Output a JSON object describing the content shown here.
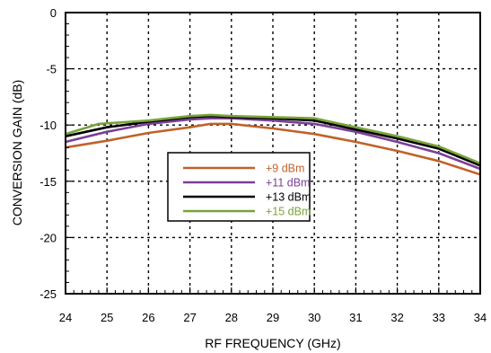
{
  "chart_data": {
    "type": "line",
    "xlabel": "RF FREQUENCY (GHz)",
    "ylabel": "CONVERSION GAIN (dB)",
    "xlim": [
      24,
      34
    ],
    "ylim": [
      -25,
      0
    ],
    "x_ticks": [
      "24",
      "25",
      "26",
      "27",
      "28",
      "29",
      "30",
      "31",
      "32",
      "33",
      "34"
    ],
    "y_ticks": [
      "0",
      "-5",
      "-10",
      "-15",
      "-20",
      "-25"
    ],
    "grid": true,
    "legend_position": "center-left",
    "series": [
      {
        "name": "+9 dBm",
        "color": "#c0622a",
        "points": [
          [
            24,
            -12.0
          ],
          [
            25,
            -11.4
          ],
          [
            26,
            -10.7
          ],
          [
            27,
            -10.2
          ],
          [
            27.5,
            -9.9
          ],
          [
            28,
            -9.9
          ],
          [
            29,
            -10.3
          ],
          [
            30,
            -10.8
          ],
          [
            31,
            -11.5
          ],
          [
            32,
            -12.3
          ],
          [
            33,
            -13.2
          ],
          [
            34,
            -14.4
          ]
        ]
      },
      {
        "name": "+11 dBm",
        "color": "#7b3f98",
        "points": [
          [
            24,
            -11.5
          ],
          [
            25,
            -10.6
          ],
          [
            26,
            -9.9
          ],
          [
            27,
            -9.5
          ],
          [
            27.5,
            -9.4
          ],
          [
            28,
            -9.4
          ],
          [
            29,
            -9.6
          ],
          [
            30,
            -9.9
          ],
          [
            31,
            -10.6
          ],
          [
            32,
            -11.5
          ],
          [
            33,
            -12.5
          ],
          [
            34,
            -13.9
          ]
        ]
      },
      {
        "name": "+13 dBm",
        "color": "#000000",
        "points": [
          [
            24,
            -11.0
          ],
          [
            25,
            -10.2
          ],
          [
            26,
            -9.7
          ],
          [
            27,
            -9.3
          ],
          [
            27.5,
            -9.2
          ],
          [
            28,
            -9.3
          ],
          [
            29,
            -9.4
          ],
          [
            30,
            -9.6
          ],
          [
            31,
            -10.4
          ],
          [
            32,
            -11.2
          ],
          [
            33,
            -12.1
          ],
          [
            34,
            -13.6
          ]
        ]
      },
      {
        "name": "+15 dBm",
        "color": "#7aa33a",
        "points": [
          [
            24,
            -10.8
          ],
          [
            24.8,
            -9.9
          ],
          [
            26,
            -9.6
          ],
          [
            27,
            -9.2
          ],
          [
            27.5,
            -9.1
          ],
          [
            28,
            -9.2
          ],
          [
            29,
            -9.3
          ],
          [
            30,
            -9.4
          ],
          [
            31,
            -10.2
          ],
          [
            32,
            -11.0
          ],
          [
            33,
            -11.9
          ],
          [
            34,
            -13.4
          ]
        ]
      }
    ]
  }
}
